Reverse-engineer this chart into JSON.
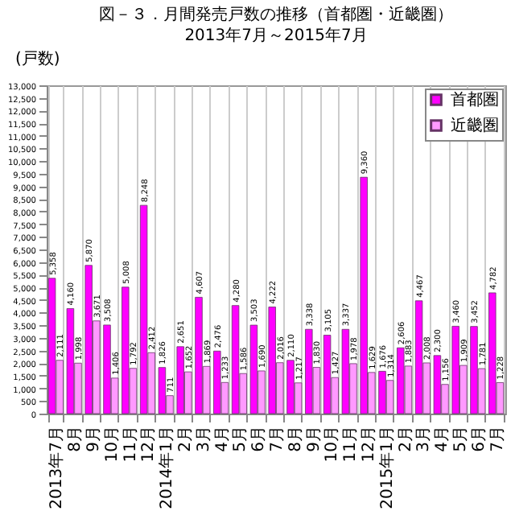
{
  "chart_data": {
    "type": "bar",
    "title": "図－３．月間発売戸数の推移（首都圏・近畿圏）",
    "subtitle": "2013年7月～2015年7月",
    "ylabel": "(戸数)",
    "categories": [
      "2013年7月",
      "8月",
      "9月",
      "10月",
      "11月",
      "12月",
      "2014年1月",
      "2月",
      "3月",
      "4月",
      "5月",
      "6月",
      "7月",
      "8月",
      "9月",
      "10月",
      "11月",
      "12月",
      "2015年1月",
      "2月",
      "3月",
      "4月",
      "5月",
      "6月",
      "7月"
    ],
    "series": [
      {
        "name": "首都圏",
        "color": "#ff00ff",
        "values": [
          5358,
          4160,
          5870,
          3508,
          5008,
          8248,
          1826,
          2651,
          4607,
          2476,
          4280,
          3503,
          4222,
          2110,
          3338,
          3105,
          3337,
          9360,
          1676,
          2606,
          4467,
          2300,
          3460,
          3452,
          4782
        ],
        "value_labels": [
          "5,358",
          "4,160",
          "5,870",
          "3,508",
          "5,008",
          "8,248",
          "1,826",
          "2,651",
          "4,607",
          "2,476",
          "4,280",
          "3,503",
          "4,222",
          "2,110",
          "3,338",
          "3,105",
          "3,337",
          "9,360",
          "1,676",
          "2,606",
          "4,467",
          "2,300",
          "3,460",
          "3,452",
          "4,782"
        ]
      },
      {
        "name": "近畿圏",
        "color": "#ff99ff",
        "values": [
          2111,
          1998,
          3671,
          1406,
          1792,
          2412,
          711,
          1652,
          1869,
          1233,
          1586,
          1690,
          2016,
          1217,
          1830,
          1427,
          1978,
          1629,
          1314,
          1883,
          2008,
          1156,
          1909,
          1781,
          1228
        ],
        "value_labels": [
          "2,111",
          "1,998",
          "3,671",
          "1,406",
          "1,792",
          "2,412",
          "711",
          "1,652",
          "1,869",
          "1,233",
          "1,586",
          "1,690",
          "2,016",
          "1,217",
          "1,830",
          "1,427",
          "1,978",
          "1,629",
          "1,314",
          "1,883",
          "2,008",
          "1,156",
          "1,909",
          "1,781",
          "1,228"
        ]
      }
    ],
    "ylim": [
      0,
      13000
    ],
    "yticks": [
      0,
      500,
      {
        "value": 1000,
        "label": "1,000"
      },
      {
        "value": 1500,
        "label": "1,500"
      },
      {
        "value": 2000,
        "label": "2,000"
      },
      {
        "value": 2500,
        "label": "2,500"
      },
      {
        "value": 3000,
        "label": "3,000"
      },
      {
        "value": 3500,
        "label": "3,500"
      },
      {
        "value": 4000,
        "label": "4,000"
      },
      {
        "value": 4500,
        "label": "4,500"
      },
      {
        "value": 5000,
        "label": "5,000"
      },
      {
        "value": 5500,
        "label": "5,500"
      },
      {
        "value": 6000,
        "label": "6,000"
      },
      {
        "value": 6500,
        "label": "6,500"
      },
      {
        "value": 7000,
        "label": "7,000"
      },
      {
        "value": 7500,
        "label": "7,500"
      },
      {
        "value": 8000,
        "label": "8,000"
      },
      {
        "value": 8500,
        "label": "8,500"
      },
      {
        "value": 9000,
        "label": "9,000"
      },
      {
        "value": 9500,
        "label": "9,500"
      },
      {
        "value": 10000,
        "label": "10,000"
      },
      {
        "value": 10500,
        "label": "10,500"
      },
      {
        "value": 11000,
        "label": "11,000"
      },
      {
        "value": 11500,
        "label": "11,500"
      },
      {
        "value": 12000,
        "label": "12,000"
      },
      {
        "value": 12500,
        "label": "12,500"
      },
      {
        "value": 13000,
        "label": "13,000"
      }
    ],
    "grid": "x",
    "legend": "top right"
  }
}
